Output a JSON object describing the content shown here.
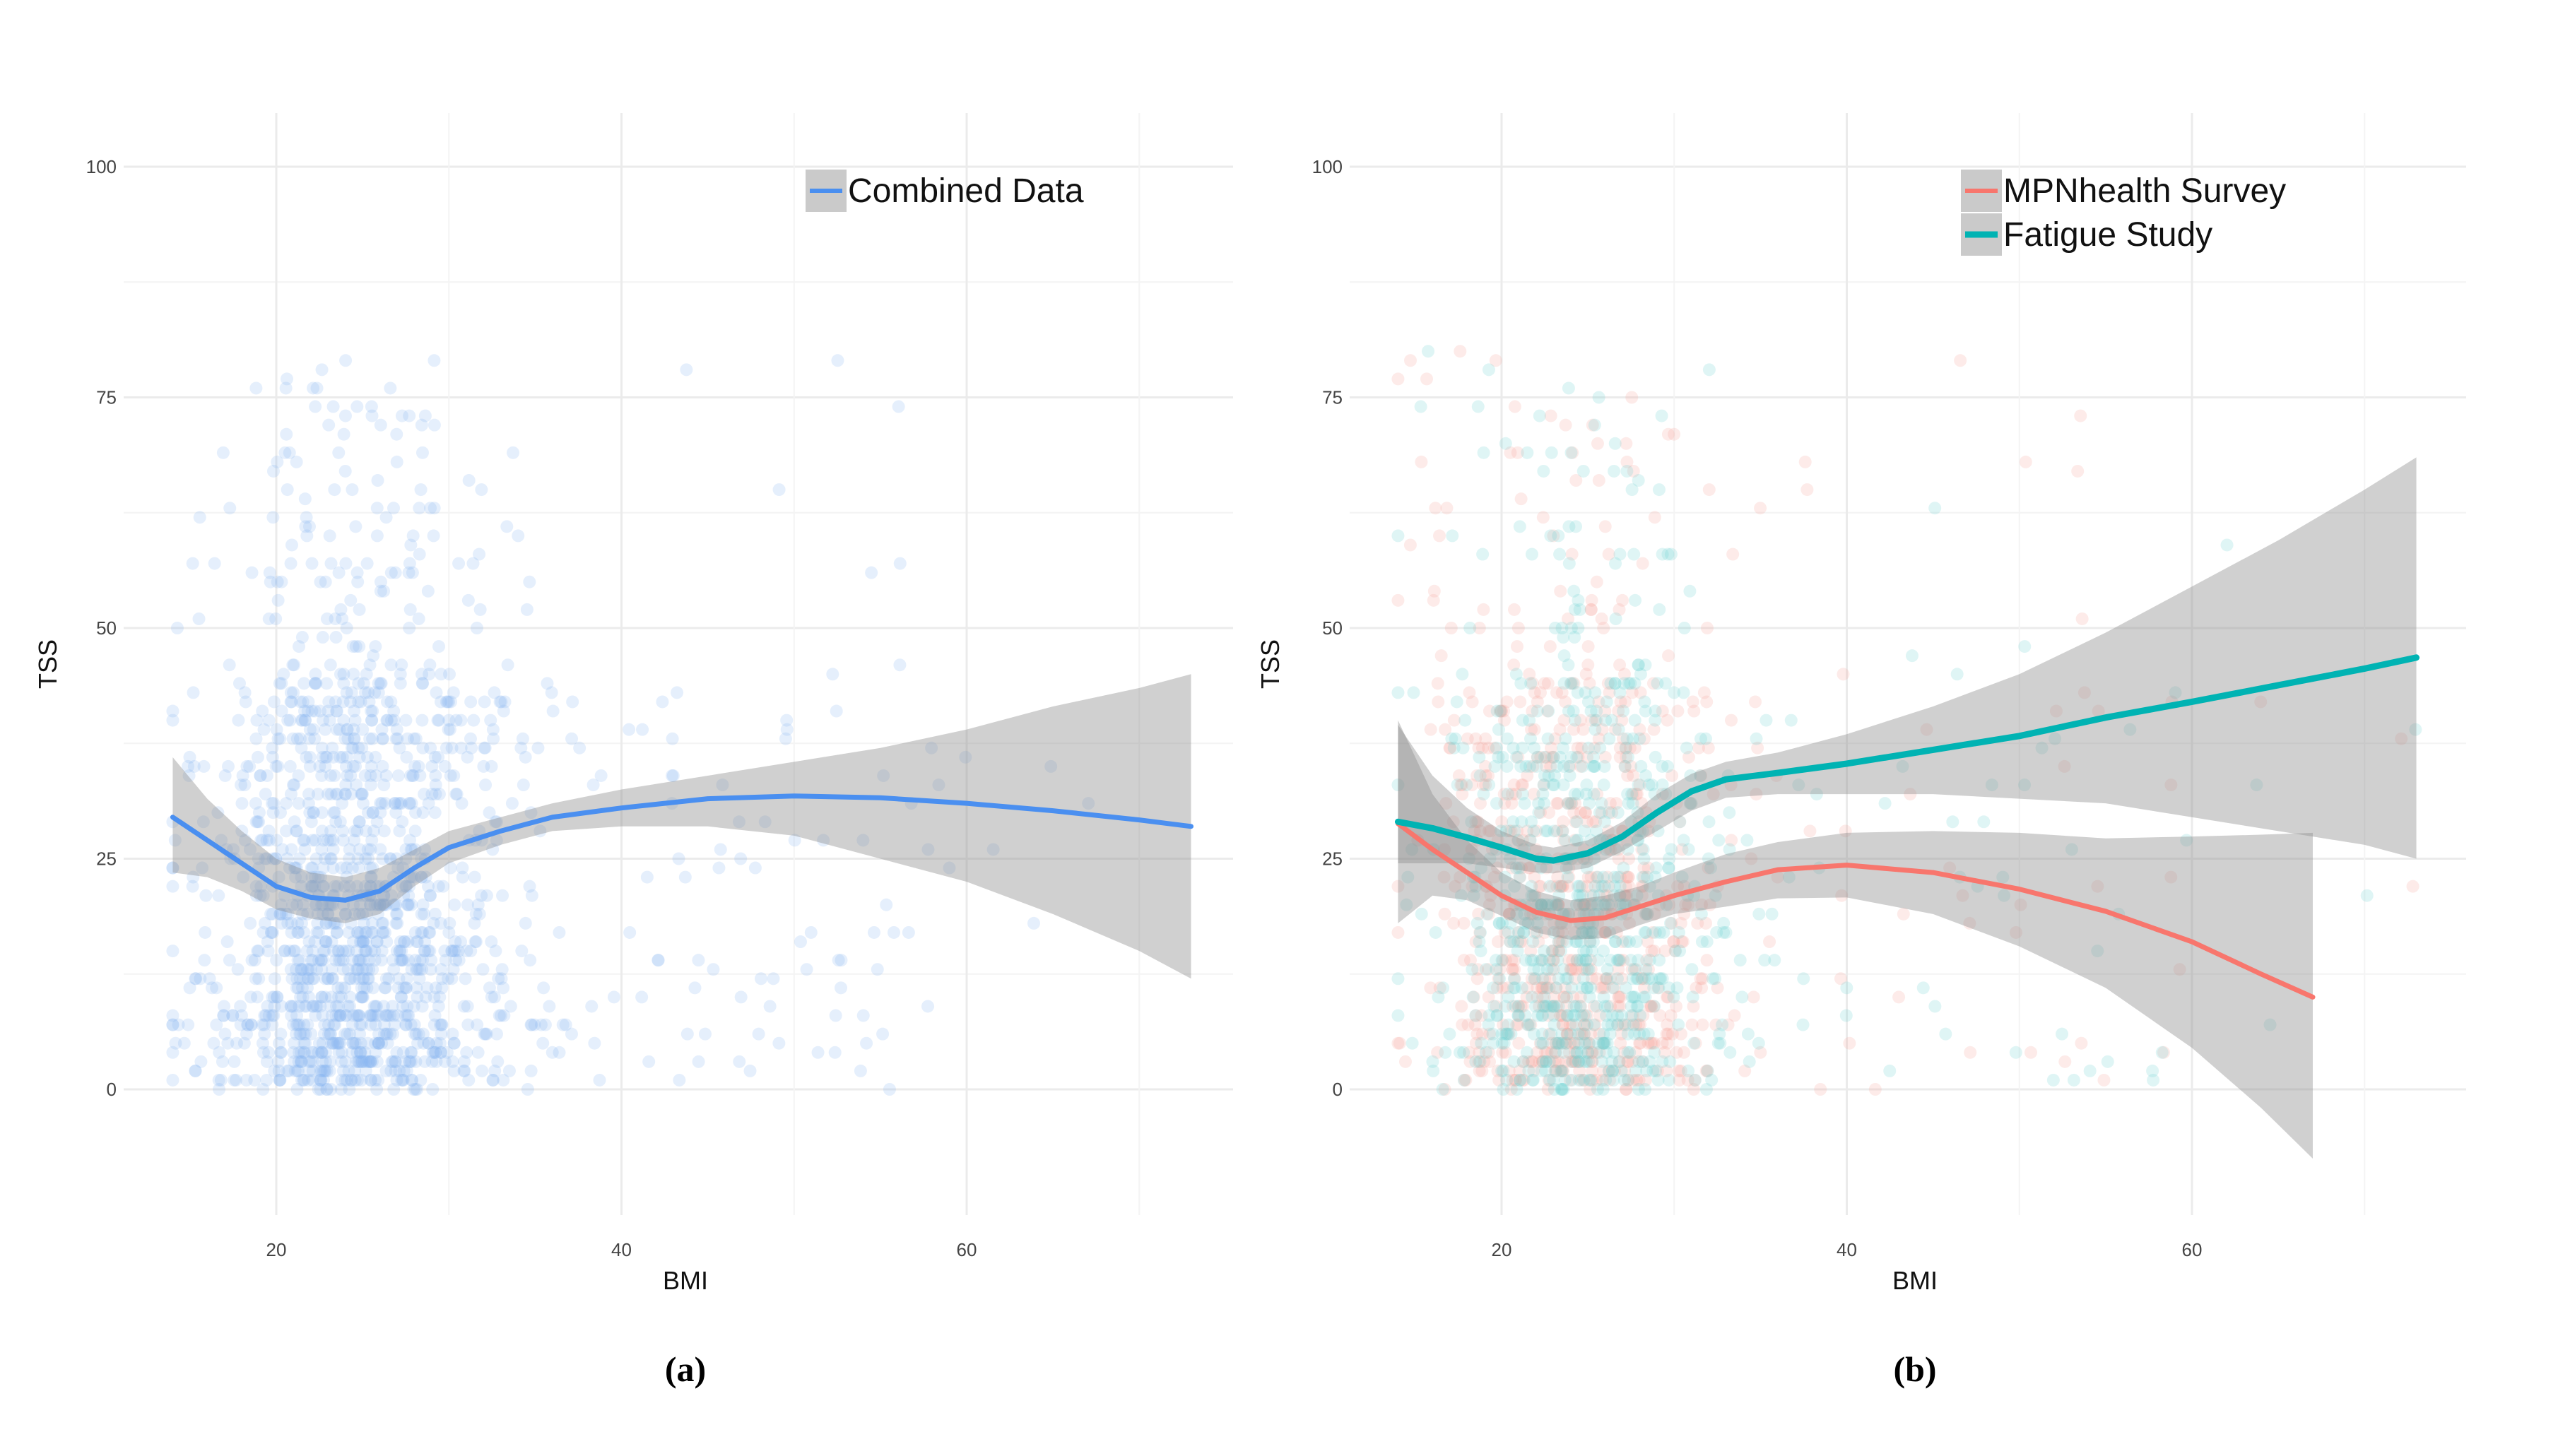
{
  "chart_data": [
    {
      "id": "a",
      "type": "scatter",
      "caption": "(a)",
      "xlabel": "BMI",
      "ylabel": "TSS",
      "xlim": [
        11.5,
        76
      ],
      "ylim": [
        -13,
        105
      ],
      "xticks": [
        20,
        40,
        60
      ],
      "yticks": [
        0,
        25,
        50,
        75,
        100
      ],
      "x_minor_gridlines": [
        30,
        50,
        70
      ],
      "grid": true,
      "legend_position": "top-right",
      "series": [
        {
          "name": "Combined Data",
          "color": "#4a8ff0",
          "point_color": "#8ab8f2",
          "smooth": [
            {
              "x": 14,
              "y": 29.5
            },
            {
              "x": 16,
              "y": 27
            },
            {
              "x": 18,
              "y": 24.5
            },
            {
              "x": 20,
              "y": 22
            },
            {
              "x": 22,
              "y": 20.8
            },
            {
              "x": 24,
              "y": 20.5
            },
            {
              "x": 26,
              "y": 21.5
            },
            {
              "x": 28,
              "y": 24
            },
            {
              "x": 30,
              "y": 26.2
            },
            {
              "x": 33,
              "y": 28
            },
            {
              "x": 36,
              "y": 29.5
            },
            {
              "x": 40,
              "y": 30.5
            },
            {
              "x": 45,
              "y": 31.5
            },
            {
              "x": 50,
              "y": 31.8
            },
            {
              "x": 55,
              "y": 31.6
            },
            {
              "x": 60,
              "y": 31
            },
            {
              "x": 65,
              "y": 30.2
            },
            {
              "x": 70,
              "y": 29.2
            },
            {
              "x": 73,
              "y": 28.5
            }
          ],
          "band_upper": [
            36,
            31.5,
            28,
            25,
            23.5,
            23,
            24,
            26,
            28,
            29.5,
            31,
            32.5,
            34,
            35.5,
            37,
            39,
            41.5,
            43.5,
            45
          ],
          "band_lower": [
            23.5,
            23,
            21.5,
            19.5,
            18.5,
            18,
            19,
            22,
            24.5,
            26.5,
            28,
            28.5,
            28.5,
            27.5,
            25,
            22.5,
            19,
            15,
            12
          ]
        }
      ]
    },
    {
      "id": "b",
      "type": "scatter",
      "caption": "(b)",
      "xlabel": "BMI",
      "ylabel": "TSS",
      "xlim": [
        11.5,
        76
      ],
      "ylim": [
        -13,
        105
      ],
      "xticks": [
        20,
        40,
        60
      ],
      "yticks": [
        0,
        25,
        50,
        75,
        100
      ],
      "x_minor_gridlines": [
        30,
        50,
        70
      ],
      "grid": true,
      "legend_position": "top-right",
      "series": [
        {
          "name": "MPNhealth Survey",
          "color": "#f8766d",
          "point_color": "#f8a29b",
          "smooth": [
            {
              "x": 14,
              "y": 28.8
            },
            {
              "x": 16,
              "y": 26
            },
            {
              "x": 18,
              "y": 23.5
            },
            {
              "x": 20,
              "y": 21
            },
            {
              "x": 22,
              "y": 19.2
            },
            {
              "x": 24,
              "y": 18.3
            },
            {
              "x": 26,
              "y": 18.6
            },
            {
              "x": 28,
              "y": 19.8
            },
            {
              "x": 30,
              "y": 21
            },
            {
              "x": 33,
              "y": 22.5
            },
            {
              "x": 36,
              "y": 23.8
            },
            {
              "x": 40,
              "y": 24.3
            },
            {
              "x": 45,
              "y": 23.5
            },
            {
              "x": 50,
              "y": 21.7
            },
            {
              "x": 55,
              "y": 19.3
            },
            {
              "x": 60,
              "y": 16
            },
            {
              "x": 64,
              "y": 12.5
            },
            {
              "x": 67,
              "y": 10
            }
          ],
          "band_upper": [
            40,
            32,
            27,
            23.5,
            21.5,
            20.5,
            21,
            22,
            23.5,
            25.5,
            26.8,
            27.8,
            28,
            27.8,
            27.2,
            27.4,
            27.6,
            27.8
          ],
          "band_lower": [
            18,
            21,
            20.5,
            18.8,
            17,
            16.2,
            16.4,
            17.8,
            19,
            19.8,
            20.7,
            20.8,
            19,
            15.5,
            11,
            4.5,
            -2,
            -7.5
          ]
        },
        {
          "name": "Fatigue Study",
          "color": "#00b3b3",
          "point_color": "#6fd3d3",
          "smooth": [
            {
              "x": 14,
              "y": 29
            },
            {
              "x": 16,
              "y": 28.3
            },
            {
              "x": 18,
              "y": 27.3
            },
            {
              "x": 20,
              "y": 26.2
            },
            {
              "x": 22,
              "y": 25
            },
            {
              "x": 23,
              "y": 24.8
            },
            {
              "x": 25,
              "y": 25.6
            },
            {
              "x": 27,
              "y": 27.4
            },
            {
              "x": 29,
              "y": 30
            },
            {
              "x": 31,
              "y": 32.3
            },
            {
              "x": 33,
              "y": 33.6
            },
            {
              "x": 36,
              "y": 34.3
            },
            {
              "x": 40,
              "y": 35.3
            },
            {
              "x": 45,
              "y": 36.8
            },
            {
              "x": 50,
              "y": 38.3
            },
            {
              "x": 55,
              "y": 40.3
            },
            {
              "x": 60,
              "y": 42
            },
            {
              "x": 65,
              "y": 43.8
            },
            {
              "x": 70,
              "y": 45.6
            },
            {
              "x": 73,
              "y": 46.8
            }
          ],
          "band_upper": [
            39.5,
            34,
            30.5,
            28,
            26.5,
            26.2,
            27,
            29,
            32,
            34.2,
            35.5,
            36.5,
            38.5,
            41.5,
            45,
            49.5,
            54.5,
            59.5,
            65,
            68.5
          ],
          "band_lower": [
            24.5,
            24.5,
            24.5,
            24,
            23.5,
            23.4,
            24,
            25.8,
            28,
            30.2,
            31.6,
            32,
            32,
            32,
            31.5,
            31,
            29.5,
            28,
            26.5,
            25
          ]
        }
      ]
    }
  ]
}
